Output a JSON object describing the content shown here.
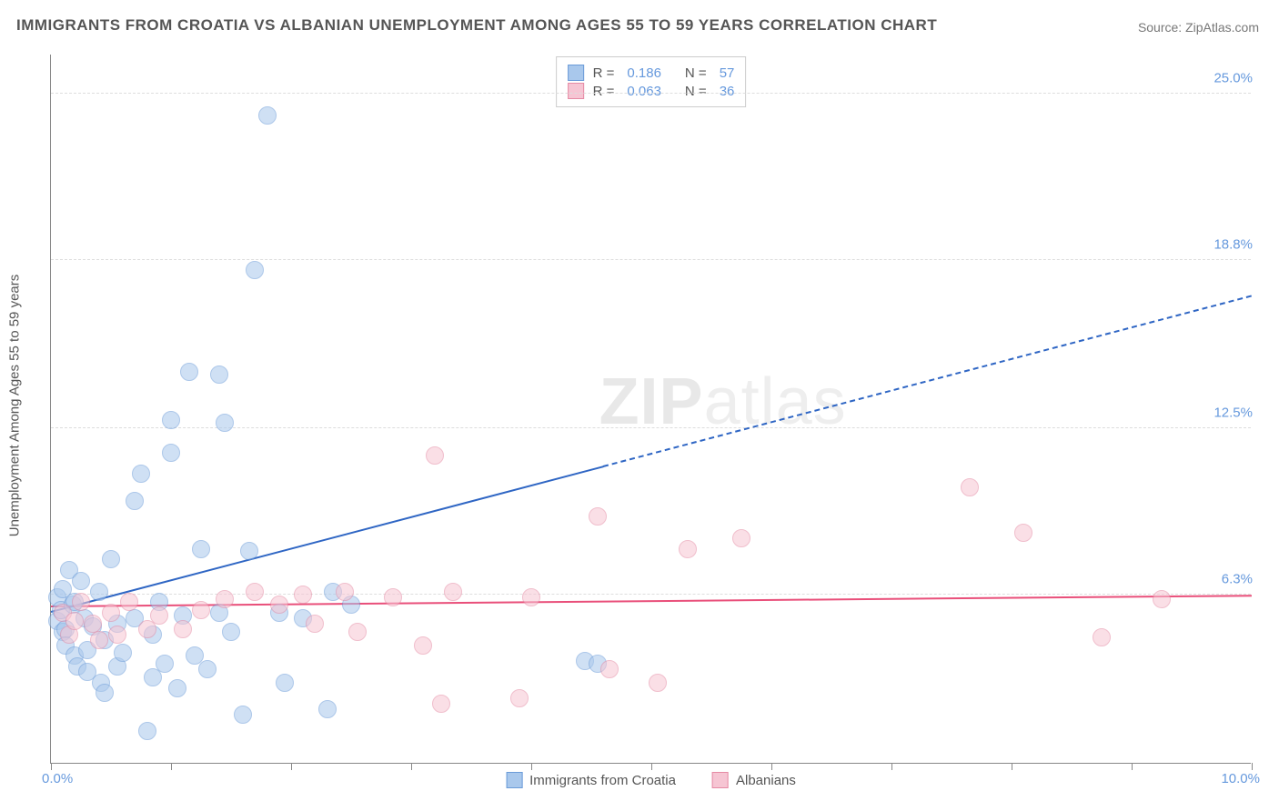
{
  "title": "IMMIGRANTS FROM CROATIA VS ALBANIAN UNEMPLOYMENT AMONG AGES 55 TO 59 YEARS CORRELATION CHART",
  "source": "Source: ZipAtlas.com",
  "ylabel": "Unemployment Among Ages 55 to 59 years",
  "watermark": {
    "bold": "ZIP",
    "light": "atlas"
  },
  "chart": {
    "type": "scatter",
    "background_color": "#ffffff",
    "grid_color": "#dddddd",
    "axis_color": "#888888",
    "xlim": [
      0.0,
      10.0
    ],
    "ylim": [
      0.0,
      26.5
    ],
    "x_axis": {
      "min_label": "0.0%",
      "max_label": "10.0%",
      "tick_count": 11,
      "label_color": "#6699dd"
    },
    "y_axis": {
      "ticks": [
        {
          "value": 6.3,
          "label": "6.3%"
        },
        {
          "value": 12.5,
          "label": "12.5%"
        },
        {
          "value": 18.8,
          "label": "18.8%"
        },
        {
          "value": 25.0,
          "label": "25.0%"
        }
      ],
      "label_color": "#6699dd"
    },
    "series": [
      {
        "name": "Immigrants from Croatia",
        "R": "0.186",
        "N": "57",
        "fill_color": "#a9c8ec",
        "stroke_color": "#6a9bd8",
        "line_color": "#2f66c4",
        "marker_radius": 10,
        "fill_opacity": 0.55,
        "trend": {
          "y_at_xmin": 5.6,
          "y_at_xmax": 17.4,
          "solid_until_x": 4.6
        },
        "points": [
          [
            0.05,
            5.3
          ],
          [
            0.05,
            6.2
          ],
          [
            0.08,
            5.7
          ],
          [
            0.1,
            4.9
          ],
          [
            0.1,
            6.5
          ],
          [
            0.12,
            5.0
          ],
          [
            0.12,
            4.4
          ],
          [
            0.15,
            7.2
          ],
          [
            0.18,
            5.9
          ],
          [
            0.2,
            6.0
          ],
          [
            0.2,
            4.0
          ],
          [
            0.22,
            3.6
          ],
          [
            0.25,
            6.8
          ],
          [
            0.28,
            5.4
          ],
          [
            0.3,
            4.2
          ],
          [
            0.3,
            3.4
          ],
          [
            0.35,
            5.1
          ],
          [
            0.4,
            6.4
          ],
          [
            0.42,
            3.0
          ],
          [
            0.45,
            4.6
          ],
          [
            0.45,
            2.6
          ],
          [
            0.5,
            7.6
          ],
          [
            0.55,
            5.2
          ],
          [
            0.55,
            3.6
          ],
          [
            0.6,
            4.1
          ],
          [
            0.7,
            9.8
          ],
          [
            0.7,
            5.4
          ],
          [
            0.75,
            10.8
          ],
          [
            0.8,
            1.2
          ],
          [
            0.85,
            3.2
          ],
          [
            0.85,
            4.8
          ],
          [
            0.9,
            6.0
          ],
          [
            0.95,
            3.7
          ],
          [
            1.0,
            11.6
          ],
          [
            1.0,
            12.8
          ],
          [
            1.05,
            2.8
          ],
          [
            1.1,
            5.5
          ],
          [
            1.15,
            14.6
          ],
          [
            1.2,
            4.0
          ],
          [
            1.25,
            8.0
          ],
          [
            1.3,
            3.5
          ],
          [
            1.4,
            5.6
          ],
          [
            1.4,
            14.5
          ],
          [
            1.45,
            12.7
          ],
          [
            1.5,
            4.9
          ],
          [
            1.6,
            1.8
          ],
          [
            1.65,
            7.9
          ],
          [
            1.7,
            18.4
          ],
          [
            1.8,
            24.2
          ],
          [
            1.9,
            5.6
          ],
          [
            1.95,
            3.0
          ],
          [
            2.1,
            5.4
          ],
          [
            2.3,
            2.0
          ],
          [
            2.35,
            6.4
          ],
          [
            2.5,
            5.9
          ],
          [
            4.45,
            3.8
          ],
          [
            4.55,
            3.7
          ]
        ]
      },
      {
        "name": "Albanians",
        "R": "0.063",
        "N": "36",
        "fill_color": "#f6c5d3",
        "stroke_color": "#e58aa4",
        "line_color": "#e94f7a",
        "marker_radius": 10,
        "fill_opacity": 0.55,
        "trend": {
          "y_at_xmin": 5.8,
          "y_at_xmax": 6.2,
          "solid_until_x": 10.0
        },
        "points": [
          [
            0.1,
            5.6
          ],
          [
            0.15,
            4.8
          ],
          [
            0.2,
            5.3
          ],
          [
            0.25,
            6.0
          ],
          [
            0.35,
            5.2
          ],
          [
            0.4,
            4.6
          ],
          [
            0.5,
            5.6
          ],
          [
            0.55,
            4.8
          ],
          [
            0.65,
            6.0
          ],
          [
            0.8,
            5.0
          ],
          [
            0.9,
            5.5
          ],
          [
            1.1,
            5.0
          ],
          [
            1.25,
            5.7
          ],
          [
            1.45,
            6.1
          ],
          [
            1.7,
            6.4
          ],
          [
            1.9,
            5.9
          ],
          [
            2.1,
            6.3
          ],
          [
            2.2,
            5.2
          ],
          [
            2.45,
            6.4
          ],
          [
            2.55,
            4.9
          ],
          [
            2.85,
            6.2
          ],
          [
            3.1,
            4.4
          ],
          [
            3.2,
            11.5
          ],
          [
            3.25,
            2.2
          ],
          [
            3.35,
            6.4
          ],
          [
            3.9,
            2.4
          ],
          [
            4.0,
            6.2
          ],
          [
            4.55,
            9.2
          ],
          [
            4.65,
            3.5
          ],
          [
            5.05,
            3.0
          ],
          [
            5.3,
            8.0
          ],
          [
            5.75,
            8.4
          ],
          [
            7.65,
            10.3
          ],
          [
            8.1,
            8.6
          ],
          [
            8.75,
            4.7
          ],
          [
            9.25,
            6.1
          ]
        ]
      }
    ],
    "legend_top": {
      "R_label": "R  =",
      "N_label": "N  ="
    },
    "legend_bottom_labels": [
      "Immigrants from Croatia",
      "Albanians"
    ]
  }
}
